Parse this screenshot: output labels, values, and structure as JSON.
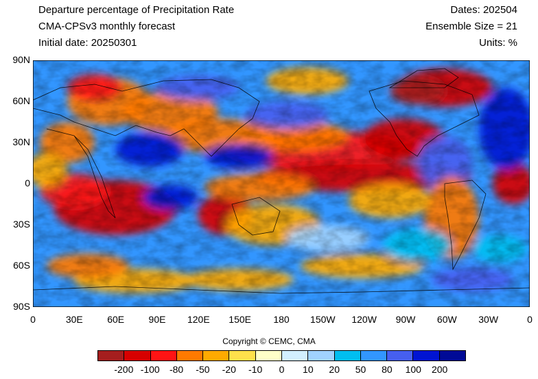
{
  "header": {
    "title": "Departure percentage of Precipitation Rate",
    "model": "CMA-CPSv3 monthly forecast",
    "initial": "Initial date: 20250301",
    "dates": "Dates: 202504",
    "ensemble": "Ensemble Size = 21",
    "units": "Units: %"
  },
  "map": {
    "lat_labels": [
      "90N",
      "60N",
      "30N",
      "0",
      "30S",
      "60S",
      "90S"
    ],
    "lon_labels": [
      "0",
      "30E",
      "60E",
      "90E",
      "120E",
      "150E",
      "180",
      "150W",
      "120W",
      "90W",
      "60W",
      "30W",
      "0"
    ]
  },
  "copyright": "Copyright © CEMC, CMA",
  "colorbar": {
    "colors": [
      "#a51e1e",
      "#d70000",
      "#ff1414",
      "#ff7a00",
      "#ffaa00",
      "#ffe14b",
      "#ffffc8",
      "#d2f0ff",
      "#a0d2ff",
      "#00bef0",
      "#3296ff",
      "#465ff0",
      "#0014d2",
      "#000a96"
    ],
    "labels": [
      "-200",
      "-100",
      "-80",
      "-50",
      "-20",
      "-10",
      "0",
      "10",
      "20",
      "50",
      "80",
      "100",
      "200"
    ]
  }
}
